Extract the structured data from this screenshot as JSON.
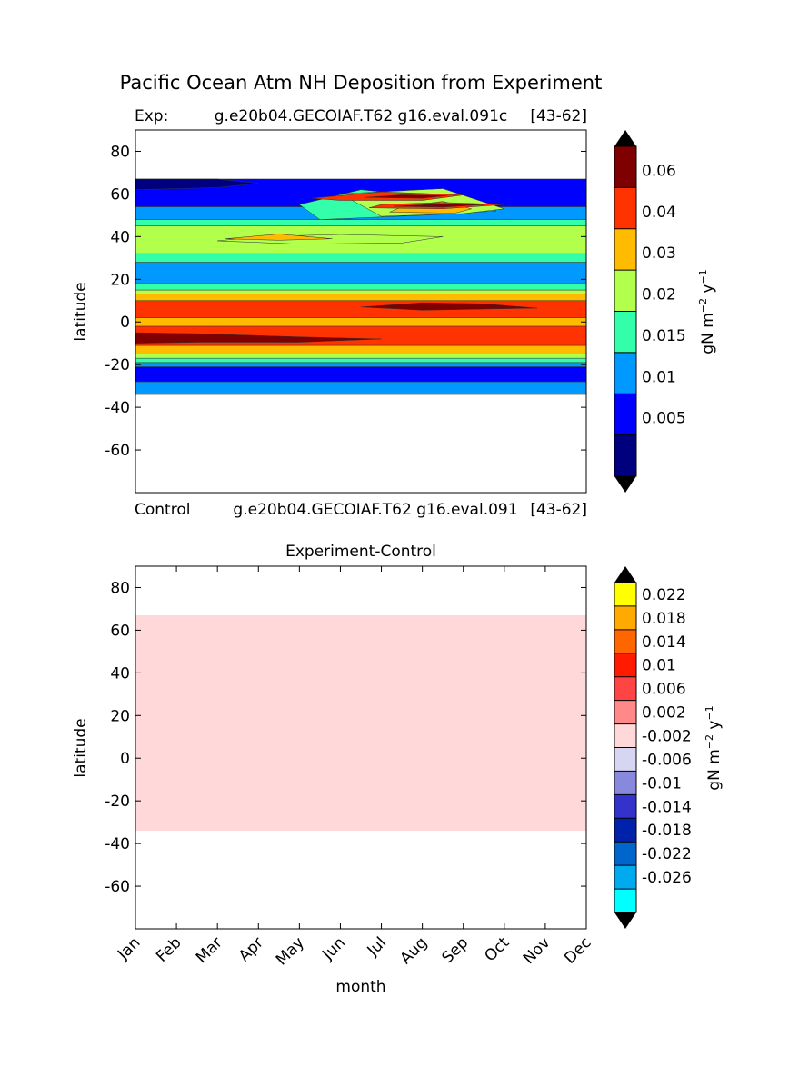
{
  "figure": {
    "suptitle": "Pacific Ocean Atm NH Deposition from Experiment"
  },
  "chart_data": [
    {
      "type": "heatmap",
      "panel": "top",
      "title_left": "Exp:",
      "title_center": "g.e20b04.GECOIAF.T62 g16.eval.091c",
      "title_right": "[43-62]",
      "xlabel_top": "Control",
      "xlabel_top_center": "g.e20b04.GECOIAF.T62 g16.eval.091",
      "xlabel_top_right": "[43-62]",
      "ylabel": "latitude",
      "xlim": [
        1,
        12
      ],
      "ylim": [
        -80,
        90
      ],
      "yticks": [
        -60,
        -40,
        -20,
        0,
        20,
        40,
        60,
        80
      ],
      "colorbar": {
        "label_main": "gN m",
        "label_exp1": "−2",
        "label_mid": " y",
        "label_exp2": "−1",
        "tick_labels": [
          "0.06",
          "0.04",
          "0.03",
          "0.02",
          "0.015",
          "0.01",
          "0.005"
        ],
        "levels": [
          0,
          0.005,
          0.01,
          0.015,
          0.02,
          0.03,
          0.04,
          0.06,
          0.08
        ],
        "colors": [
          "#00007f",
          "#0000ff",
          "#0099ff",
          "#33ffaa",
          "#b2ff4c",
          "#ffbb00",
          "#ff3300",
          "#7f0000"
        ]
      },
      "bands": [
        {
          "lat": [
            -34,
            -28
          ],
          "color": "#0099ff"
        },
        {
          "lat": [
            -28,
            -21
          ],
          "color": "#0000ff"
        },
        {
          "lat": [
            -21,
            -19
          ],
          "color": "#0099ff"
        },
        {
          "lat": [
            -19,
            -17
          ],
          "color": "#33ffaa"
        },
        {
          "lat": [
            -17,
            -15
          ],
          "color": "#b2ff4c"
        },
        {
          "lat": [
            -15,
            -11
          ],
          "color": "#ffbb00"
        },
        {
          "lat": [
            -11,
            -2
          ],
          "color": "#ff3300"
        },
        {
          "lat": [
            -2,
            2
          ],
          "color": "#ffbb00"
        },
        {
          "lat": [
            2,
            10
          ],
          "color": "#ff3300"
        },
        {
          "lat": [
            10,
            13
          ],
          "color": "#ffbb00"
        },
        {
          "lat": [
            13,
            15
          ],
          "color": "#b2ff4c"
        },
        {
          "lat": [
            15,
            18
          ],
          "color": "#33ffaa"
        },
        {
          "lat": [
            18,
            28
          ],
          "color": "#0099ff"
        },
        {
          "lat": [
            28,
            32
          ],
          "color": "#33ffaa"
        },
        {
          "lat": [
            32,
            45
          ],
          "color": "#b2ff4c"
        },
        {
          "lat": [
            45,
            48
          ],
          "color": "#33ffaa"
        },
        {
          "lat": [
            48,
            54
          ],
          "color": "#0099ff"
        },
        {
          "lat": [
            54,
            67
          ],
          "color": "#0000ff"
        }
      ],
      "features": [
        {
          "points": [
            [
              1,
              -5
            ],
            [
              2.5,
              -5.5
            ],
            [
              5,
              -7
            ],
            [
              7,
              -8
            ],
            [
              5,
              -9.5
            ],
            [
              2.5,
              -9.5
            ],
            [
              1,
              -10
            ]
          ],
          "color": "#7f0000"
        },
        {
          "points": [
            [
              6.5,
              7
            ],
            [
              8,
              9
            ],
            [
              9.5,
              8.5
            ],
            [
              10.8,
              6.5
            ],
            [
              8,
              5.5
            ]
          ],
          "color": "#7f0000"
        },
        {
          "points": [
            [
              3,
              38
            ],
            [
              5,
              36.5
            ],
            [
              7.5,
              37
            ],
            [
              8.5,
              40
            ],
            [
              6,
              41
            ],
            [
              4,
              40
            ]
          ],
          "color": "#b2ff4c"
        },
        {
          "points": [
            [
              3.2,
              39
            ],
            [
              4.5,
              38.3
            ],
            [
              5.8,
              39
            ],
            [
              4.5,
              41.2
            ]
          ],
          "color": "#ffbb00"
        },
        {
          "points": [
            [
              5.5,
              48
            ],
            [
              8,
              50
            ],
            [
              9.8,
              52
            ],
            [
              8.5,
              58
            ],
            [
              6.5,
              62
            ],
            [
              5,
              55
            ]
          ],
          "color": "#33ffaa"
        },
        {
          "points": [
            [
              7,
              49.5
            ],
            [
              9,
              50.8
            ],
            [
              10,
              53
            ],
            [
              8.5,
              62.5
            ],
            [
              6,
              60
            ]
          ],
          "color": "#b2ff4c"
        },
        {
          "points": [
            [
              7.2,
              51.5
            ],
            [
              8.8,
              51
            ],
            [
              9.2,
              53
            ],
            [
              8.5,
              56.5
            ],
            [
              7.5,
              54
            ]
          ],
          "color": "#ffbb00"
        },
        {
          "points": [
            [
              5.3,
              58
            ],
            [
              7,
              61
            ],
            [
              9,
              59.5
            ],
            [
              8,
              57
            ],
            [
              6,
              57
            ]
          ],
          "color": "#ff3300"
        },
        {
          "points": [
            [
              6.7,
              53.5
            ],
            [
              8.5,
              53
            ],
            [
              10,
              55
            ],
            [
              8.5,
              56
            ],
            [
              7,
              55
            ]
          ],
          "color": "#ff3300"
        },
        {
          "points": [
            [
              7.3,
              54.2
            ],
            [
              8.5,
              53.8
            ],
            [
              9.5,
              55
            ],
            [
              8.5,
              55.3
            ]
          ],
          "color": "#7f0000"
        },
        {
          "points": [
            [
              6.6,
              58.4
            ],
            [
              8,
              58
            ],
            [
              8.6,
              59.2
            ],
            [
              7.5,
              59.6
            ]
          ],
          "color": "#7f0000"
        },
        {
          "points": [
            [
              1,
              62
            ],
            [
              3,
              63
            ],
            [
              4,
              65
            ],
            [
              3,
              67
            ],
            [
              1,
              67
            ]
          ],
          "color": "#00007f"
        }
      ]
    },
    {
      "type": "heatmap",
      "panel": "bottom",
      "title": "Experiment-Control",
      "xlabel": "month",
      "ylabel": "latitude",
      "xlim": [
        1,
        12
      ],
      "ylim": [
        -80,
        90
      ],
      "yticks": [
        -60,
        -40,
        -20,
        0,
        20,
        40,
        60,
        80
      ],
      "categories": [
        "Jan",
        "Feb",
        "Mar",
        "Apr",
        "May",
        "Jun",
        "Jul",
        "Aug",
        "Sep",
        "Oct",
        "Nov",
        "Dec"
      ],
      "fill": {
        "lat": [
          -34,
          67
        ],
        "color": "#ffd9d9"
      },
      "colorbar": {
        "label_main": "gN m",
        "label_exp1": "−2",
        "label_mid": " y",
        "label_exp2": "−1",
        "tick_labels": [
          "0.022",
          "0.018",
          "0.014",
          "0.01",
          "0.006",
          "0.002",
          "-0.002",
          "-0.006",
          "-0.01",
          "-0.014",
          "-0.018",
          "-0.022",
          "-0.026"
        ],
        "colors": [
          "#00ffff",
          "#00aaee",
          "#0066cc",
          "#0022aa",
          "#3333cc",
          "#8888dd",
          "#d6d6f3",
          "#ffd9d9",
          "#ff8888",
          "#ff4444",
          "#ff1a00",
          "#ff6600",
          "#ffaa00",
          "#ffff00"
        ]
      }
    }
  ]
}
